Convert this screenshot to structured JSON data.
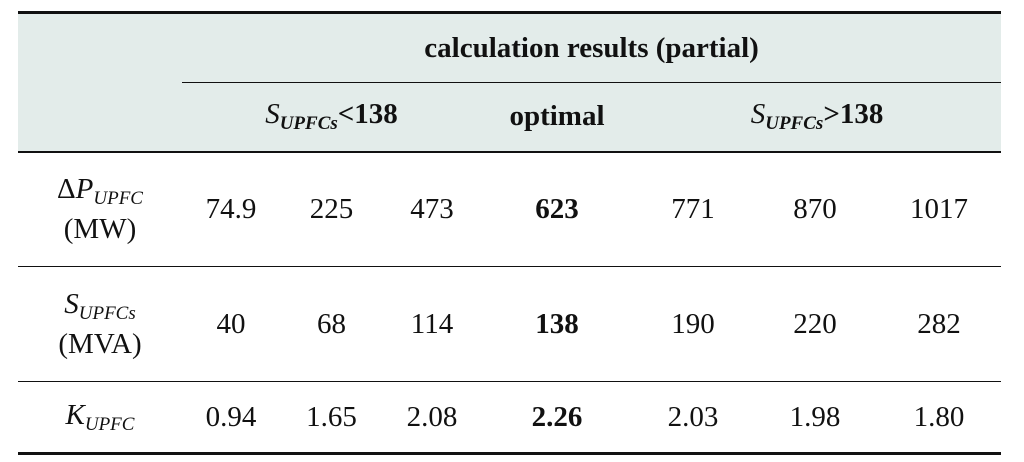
{
  "title": "calculation results (partial)",
  "groups": {
    "below": {
      "symbol": "S",
      "subscript": "UPFCs",
      "suffix": "<138"
    },
    "optimal": "optimal",
    "above": {
      "symbol": "S",
      "subscript": "UPFCs",
      "suffix": ">138"
    }
  },
  "rows": [
    {
      "label_prefix": "Δ",
      "label_symbol": "P",
      "label_subscript": "UPFC",
      "label_unit": "(MW)",
      "values": [
        "74.9",
        "225",
        "473",
        "623",
        "771",
        "870",
        "1017"
      ]
    },
    {
      "label_prefix": "",
      "label_symbol": "S",
      "label_subscript": "UPFCs",
      "label_unit": "(MVA)",
      "values": [
        "40",
        "68",
        "114",
        "138",
        "190",
        "220",
        "282"
      ]
    },
    {
      "label_prefix": "",
      "label_symbol": "K",
      "label_subscript": "UPFC",
      "label_unit": "",
      "values": [
        "0.94",
        "1.65",
        "2.08",
        "2.26",
        "2.03",
        "1.98",
        "1.80"
      ]
    }
  ]
}
